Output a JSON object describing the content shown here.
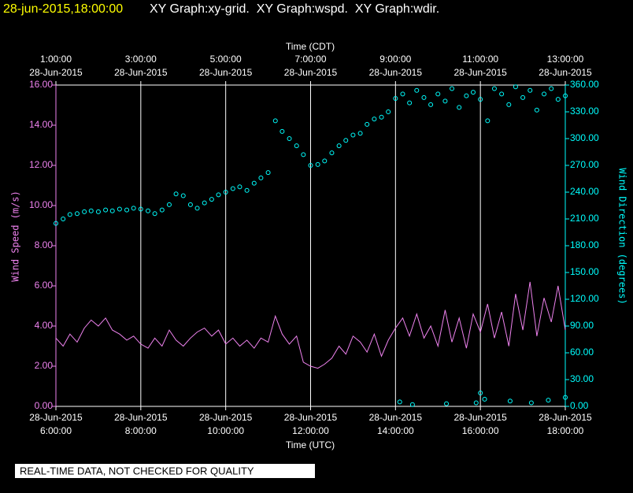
{
  "header": {
    "timestamp": "28-jun-2015,18:00:00",
    "graphs": "XY Graph:xy-grid.  XY Graph:wspd.  XY Graph:wdir."
  },
  "footer": {
    "notice": "REAL-TIME DATA, NOT CHECKED FOR QUALITY"
  },
  "chart_data": {
    "type": "line",
    "grid": true,
    "xlabel": "Time (UTC)",
    "x2label": "Time (CDT)",
    "ylabel": "Wind Speed (m/s)",
    "y2label": "Wind Direction (degrees)",
    "xlim": [
      6,
      18
    ],
    "xticks": [
      {
        "value": 6,
        "date": "28-Jun-2015",
        "label": "6:00:00"
      },
      {
        "value": 8,
        "date": "28-Jun-2015",
        "label": "8:00:00"
      },
      {
        "value": 10,
        "date": "28-Jun-2015",
        "label": "10:00:00"
      },
      {
        "value": 12,
        "date": "28-Jun-2015",
        "label": "12:00:00"
      },
      {
        "value": 14,
        "date": "28-Jun-2015",
        "label": "14:00:00"
      },
      {
        "value": 16,
        "date": "28-Jun-2015",
        "label": "16:00:00"
      },
      {
        "value": 18,
        "date": "28-Jun-2015",
        "label": "18:00:00"
      }
    ],
    "x2ticks": [
      {
        "value": 6,
        "date": "28-Jun-2015",
        "label": "1:00:00"
      },
      {
        "value": 8,
        "date": "28-Jun-2015",
        "label": "3:00:00"
      },
      {
        "value": 10,
        "date": "28-Jun-2015",
        "label": "5:00:00"
      },
      {
        "value": 12,
        "date": "28-Jun-2015",
        "label": "7:00:00"
      },
      {
        "value": 14,
        "date": "28-Jun-2015",
        "label": "9:00:00"
      },
      {
        "value": 16,
        "date": "28-Jun-2015",
        "label": "11:00:00"
      },
      {
        "value": 18,
        "date": "28-Jun-2015",
        "label": "13:00:00"
      }
    ],
    "ylim": [
      0,
      16
    ],
    "yticks": [
      {
        "value": 0,
        "label": "0.00"
      },
      {
        "value": 2,
        "label": "2.00"
      },
      {
        "value": 4,
        "label": "4.00"
      },
      {
        "value": 6,
        "label": "6.00"
      },
      {
        "value": 8,
        "label": "8.00"
      },
      {
        "value": 10,
        "label": "10.00"
      },
      {
        "value": 12,
        "label": "12.00"
      },
      {
        "value": 14,
        "label": "14.00"
      },
      {
        "value": 16,
        "label": "16.00"
      }
    ],
    "y2lim": [
      0,
      360
    ],
    "y2ticks": [
      {
        "value": 0,
        "label": "0.00"
      },
      {
        "value": 30,
        "label": "30.00"
      },
      {
        "value": 60,
        "label": "60.00"
      },
      {
        "value": 90,
        "label": "90.00"
      },
      {
        "value": 120,
        "label": "120.00"
      },
      {
        "value": 150,
        "label": "150.00"
      },
      {
        "value": 180,
        "label": "180.00"
      },
      {
        "value": 210,
        "label": "210.00"
      },
      {
        "value": 240,
        "label": "240.00"
      },
      {
        "value": 270,
        "label": "270.00"
      },
      {
        "value": 300,
        "label": "300.00"
      },
      {
        "value": 330,
        "label": "330.00"
      },
      {
        "value": 360,
        "label": "360.00"
      }
    ],
    "series": [
      {
        "type": "line",
        "color": "#ee82ee",
        "x": [
          6,
          6.17,
          6.33,
          6.5,
          6.67,
          6.83,
          7,
          7.17,
          7.33,
          7.5,
          7.67,
          7.83,
          8,
          8.17,
          8.33,
          8.5,
          8.67,
          8.83,
          9,
          9.17,
          9.33,
          9.5,
          9.67,
          9.83,
          10,
          10.17,
          10.33,
          10.5,
          10.67,
          10.83,
          11,
          11.17,
          11.33,
          11.5,
          11.67,
          11.83,
          12,
          12.17,
          12.33,
          12.5,
          12.67,
          12.83,
          13,
          13.17,
          13.33,
          13.5,
          13.67,
          13.83,
          14,
          14.17,
          14.33,
          14.5,
          14.67,
          14.83,
          15,
          15.17,
          15.33,
          15.5,
          15.67,
          15.83,
          16,
          16.17,
          16.33,
          16.5,
          16.67,
          16.83,
          17,
          17.17,
          17.33,
          17.5,
          17.67,
          17.83,
          18
        ],
        "values": [
          3.4,
          3.0,
          3.6,
          3.2,
          3.9,
          4.3,
          4.0,
          4.4,
          3.8,
          3.6,
          3.3,
          3.5,
          3.1,
          2.9,
          3.4,
          3.0,
          3.8,
          3.3,
          3.0,
          3.4,
          3.7,
          3.9,
          3.5,
          3.8,
          3.1,
          3.4,
          3.0,
          3.3,
          2.9,
          3.4,
          3.2,
          4.5,
          3.6,
          3.1,
          3.5,
          2.2,
          2.0,
          1.9,
          2.1,
          2.4,
          3.0,
          2.6,
          3.5,
          3.2,
          2.7,
          3.6,
          2.5,
          3.3,
          3.9,
          4.4,
          3.5,
          4.6,
          3.4,
          4.0,
          3.0,
          4.8,
          3.2,
          4.4,
          2.9,
          4.6,
          3.7,
          5.1,
          3.4,
          4.7,
          3.0,
          5.6,
          3.8,
          6.2,
          3.5,
          5.4,
          4.2,
          6.0,
          3.8
        ]
      },
      {
        "type": "scatter",
        "axis": "y2",
        "color": "#00ffff",
        "x": [
          6,
          6.17,
          6.33,
          6.5,
          6.67,
          6.83,
          7,
          7.17,
          7.33,
          7.5,
          7.67,
          7.83,
          8,
          8.17,
          8.33,
          8.5,
          8.67,
          8.83,
          9,
          9.17,
          9.33,
          9.5,
          9.67,
          9.83,
          10,
          10.17,
          10.33,
          10.5,
          10.67,
          10.83,
          11,
          11.17,
          11.33,
          11.5,
          11.67,
          11.83,
          12,
          12.17,
          12.33,
          12.5,
          12.67,
          12.83,
          13,
          13.17,
          13.33,
          13.5,
          13.67,
          13.83,
          14,
          14.17,
          14.33,
          14.5,
          14.67,
          14.83,
          15,
          15.17,
          15.33,
          15.5,
          15.67,
          15.83,
          16,
          16.17,
          16.33,
          16.5,
          16.67,
          16.83,
          17,
          17.17,
          17.33,
          17.5,
          17.67,
          17.83,
          18,
          14.1,
          14.4,
          15.2,
          15.9,
          16,
          16.1,
          16.7,
          17.2,
          17.6,
          18
        ],
        "values": [
          205,
          210,
          215,
          216,
          218,
          219,
          218,
          220,
          219,
          221,
          220,
          222,
          221,
          219,
          216,
          220,
          226,
          238,
          236,
          226,
          222,
          228,
          232,
          237,
          240,
          244,
          246,
          242,
          250,
          256,
          262,
          320,
          308,
          300,
          292,
          282,
          270,
          271,
          275,
          284,
          292,
          298,
          304,
          306,
          316,
          322,
          324,
          330,
          345,
          350,
          340,
          354,
          346,
          338,
          350,
          342,
          356,
          335,
          348,
          352,
          344,
          320,
          356,
          350,
          338,
          358,
          346,
          354,
          332,
          350,
          356,
          344,
          348,
          5,
          2,
          3,
          4,
          15,
          8,
          6,
          4,
          7,
          10
        ]
      }
    ]
  }
}
